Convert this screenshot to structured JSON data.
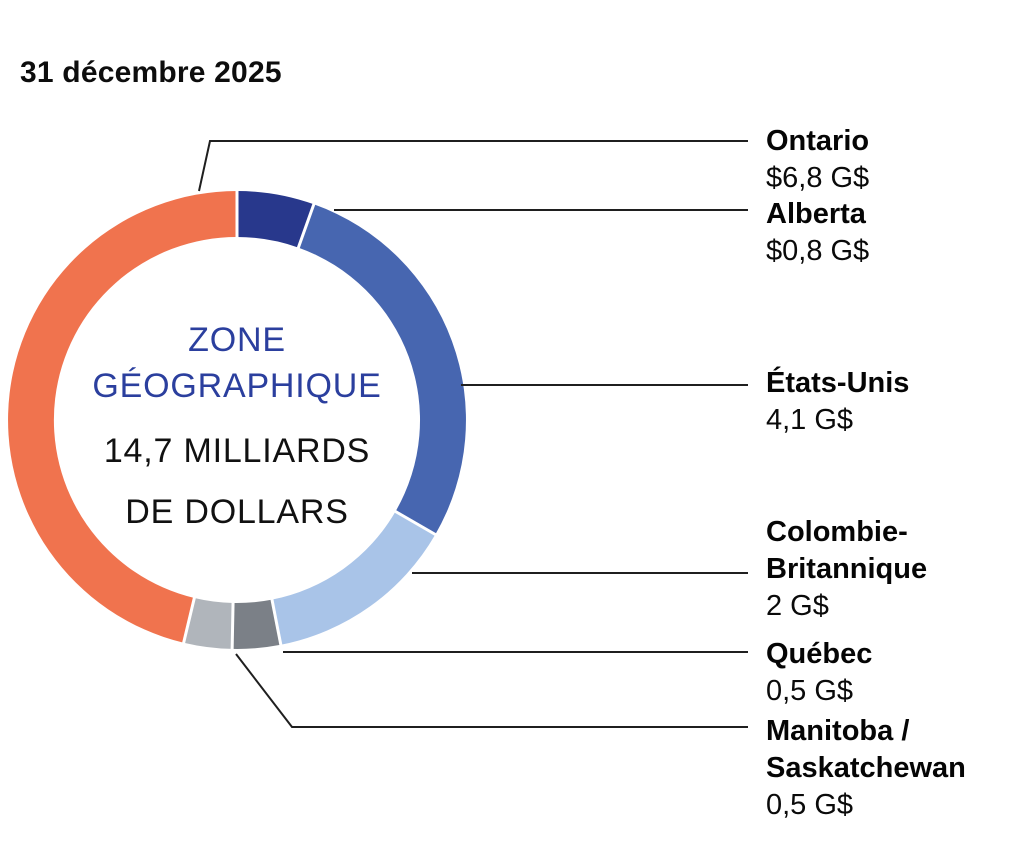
{
  "chart_data": {
    "type": "pie",
    "subtype": "donut",
    "title": "31 décembre 2025",
    "center_text": {
      "line1": "ZONE",
      "line2": "GÉOGRAPHIQUE",
      "line3": "14,7 MILLIARDS",
      "line4": "DE DOLLARS"
    },
    "total_value_billions": 14.7,
    "unit": "G$",
    "legend_position": "right",
    "start_angle_deg": 0,
    "direction": "clockwise",
    "segments": [
      {
        "name": "Alberta",
        "value": 0.8,
        "value_label": "$0,8 G$",
        "color": "#28388c"
      },
      {
        "name": "États-Unis",
        "value": 4.1,
        "value_label": "4,1 G$",
        "color": "#4766b0"
      },
      {
        "name": "Colombie-\nBritannique",
        "value": 2,
        "value_label": "2 G$",
        "color": "#a9c4e8"
      },
      {
        "name": "Québec",
        "value": 0.5,
        "value_label": "0,5 G$",
        "color": "#7b8087"
      },
      {
        "name": "Manitoba /\nSaskatchewan",
        "value": 0.5,
        "value_label": "0,5 G$",
        "color": "#b0b5bb"
      },
      {
        "name": "Ontario",
        "value": 6.8,
        "value_label": "$6,8 G$",
        "color": "#f0734e"
      }
    ],
    "colors": {
      "center_accent_text": "#2b3f9e",
      "leader_line": "#1f1f1f",
      "separator": "#ffffff"
    }
  }
}
